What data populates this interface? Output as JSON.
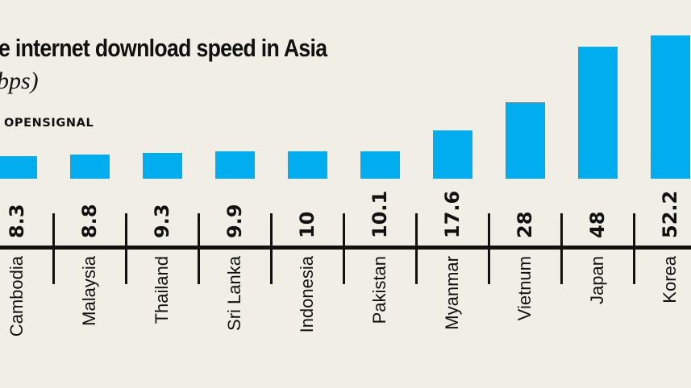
{
  "header": {
    "title": "e internet download speed in Asia",
    "subtitle": "bps)",
    "source": "OPENSIGNAL"
  },
  "colors": {
    "background": "#f1eee6",
    "bar": "#00aeef",
    "text": "#111111"
  },
  "chart_data": {
    "type": "bar",
    "title": "...e internet download speed in Asia",
    "subtitle": "(...bps)",
    "source": "OPENSIGNAL",
    "categories": [
      "Cambodia",
      "Malaysia",
      "Thailand",
      "Sri Lanka",
      "Indonesia",
      "Pakistan",
      "Myanmar",
      "Vietnum",
      "Japan",
      "Korea"
    ],
    "values": [
      8.3,
      8.8,
      9.3,
      9.9,
      10,
      10.1,
      17.6,
      28,
      48,
      52.2
    ],
    "value_labels": [
      "8.3",
      "8.8",
      "9.3",
      "9.9",
      "10",
      "10.1",
      "17.6",
      "28",
      "48",
      "52.2"
    ],
    "xlabel": "",
    "ylabel": "",
    "grid": false,
    "legend": "none",
    "orientation": "vertical bars, values and labels rotated 90°"
  },
  "bars": [
    {
      "name": "Cambodia",
      "value": "8.3"
    },
    {
      "name": "Malaysia",
      "value": "8.8"
    },
    {
      "name": "Thailand",
      "value": "9.3"
    },
    {
      "name": "Sri Lanka",
      "value": "9.9"
    },
    {
      "name": "Indonesia",
      "value": "10"
    },
    {
      "name": "Pakistan",
      "value": "10.1"
    },
    {
      "name": "Myanmar",
      "value": "17.6"
    },
    {
      "name": "Vietnum",
      "value": "28"
    },
    {
      "name": "Japan",
      "value": "48"
    },
    {
      "name": "Korea",
      "value": "52.2"
    }
  ]
}
